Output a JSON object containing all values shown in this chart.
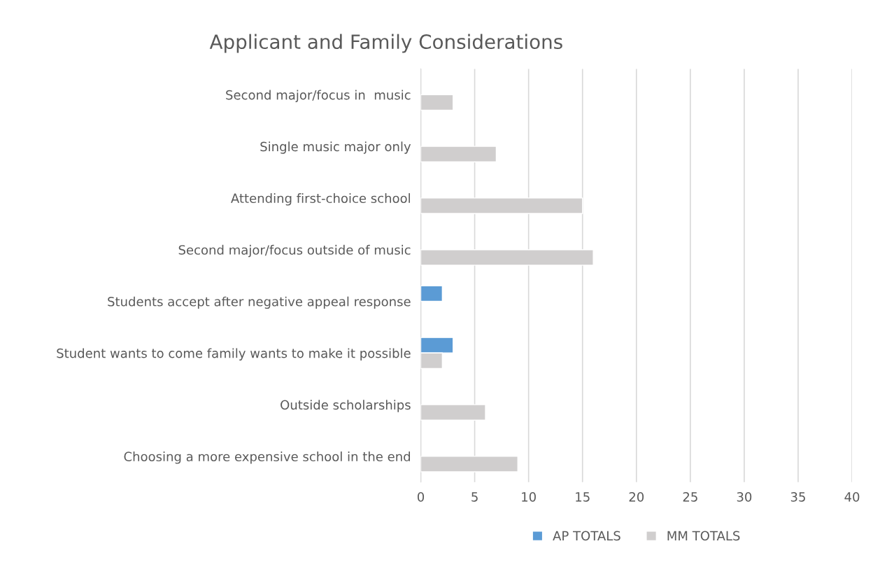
{
  "chart_data": {
    "type": "bar",
    "orientation": "horizontal",
    "title": "Applicant and Family Considerations",
    "categories": [
      "Second major/focus in  music",
      "Single music major only",
      "Attending first-choice school",
      "Second major/focus outside of music",
      "Students accept after negative appeal response",
      "Student wants to come family wants to make it possible",
      "Outside scholarships",
      "Choosing a more expensive school in the end"
    ],
    "series": [
      {
        "name": "AP TOTALS",
        "color": "#5b9bd5",
        "values": [
          null,
          null,
          null,
          null,
          2,
          3,
          null,
          null
        ]
      },
      {
        "name": "MM TOTALS",
        "color": "#d0cece",
        "values": [
          3,
          7,
          15,
          16,
          null,
          2,
          6,
          9
        ]
      }
    ],
    "xlim": [
      0,
      40
    ],
    "xticks": [
      0,
      5,
      10,
      15,
      20,
      25,
      30,
      35,
      40
    ],
    "grid": "x",
    "legend": "bottom"
  }
}
